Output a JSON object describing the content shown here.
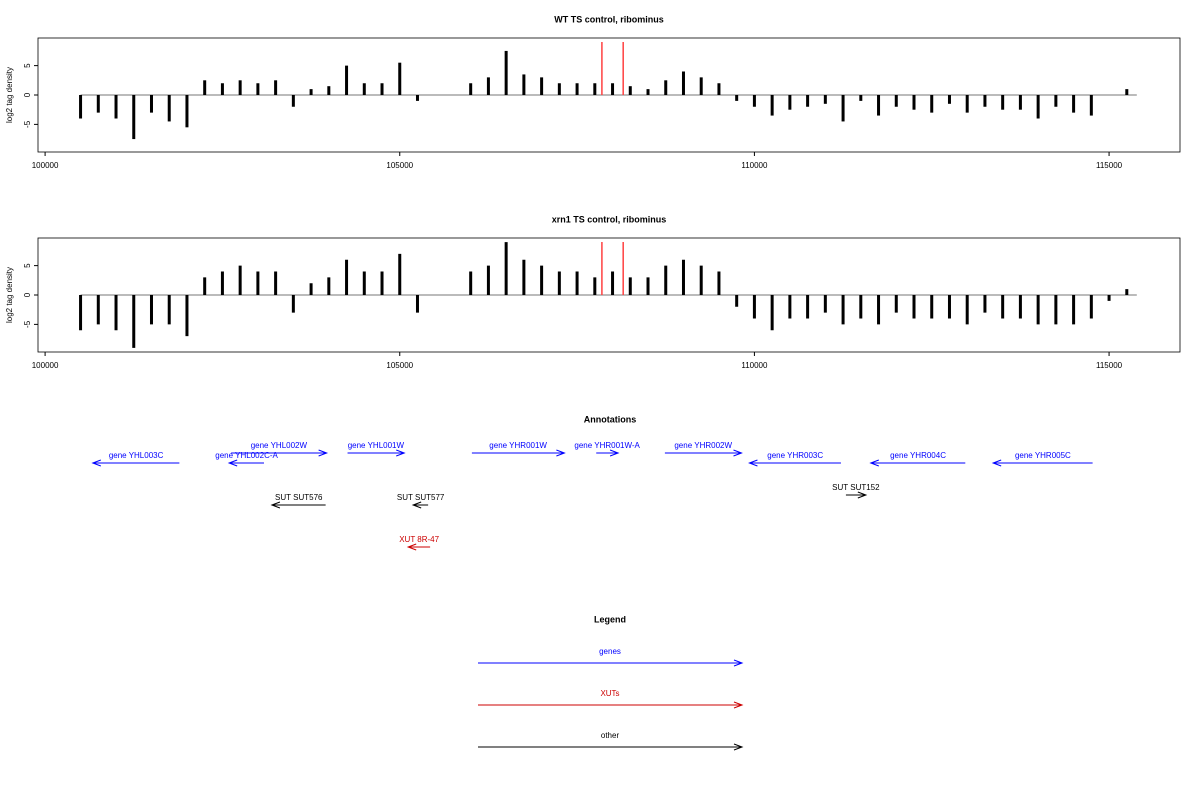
{
  "chart_data": [
    {
      "type": "bar",
      "title": "WT TS control, ribominus",
      "y_label": "log2 tag density",
      "x": [
        100500,
        100750,
        101000,
        101250,
        101500,
        101750,
        102000,
        102250,
        102500,
        102750,
        103000,
        103250,
        103500,
        103750,
        104000,
        104250,
        104500,
        104750,
        105000,
        105250,
        105500,
        105750,
        106000,
        106250,
        106500,
        106750,
        107000,
        107250,
        107500,
        107750,
        108000,
        108250,
        108500,
        108750,
        109000,
        109250,
        109500,
        109750,
        110000,
        110250,
        110500,
        110750,
        111000,
        111250,
        111500,
        111750,
        112000,
        112250,
        112500,
        112750,
        113000,
        113250,
        113500,
        113750,
        114000,
        114250,
        114500,
        114750,
        115000,
        115250
      ],
      "values": [
        -4,
        -3,
        -4,
        -7.5,
        -3,
        -4.5,
        -5.5,
        2.5,
        2,
        2.5,
        2,
        2.5,
        -2,
        1,
        1.5,
        5,
        2,
        2,
        5.5,
        -1,
        0,
        0,
        2,
        3,
        7.5,
        3.5,
        3,
        2,
        2,
        2,
        2,
        1.5,
        1,
        2.5,
        4,
        3,
        2,
        -1,
        -2,
        -3.5,
        -2.5,
        -2,
        -1.5,
        -4.5,
        -1,
        -3.5,
        -2,
        -2.5,
        -3,
        -1.5,
        -3,
        -2,
        -2.5,
        -2.5,
        -4,
        -2,
        -3,
        -3.5,
        0,
        1
      ],
      "color": "#000000",
      "markers": [
        107850,
        108150
      ],
      "marker_color": "#ff4040",
      "xlim": [
        99900,
        116000
      ],
      "xticks": [
        100000,
        105000,
        110000,
        115000
      ],
      "ylim": [
        -9.7,
        9.7
      ],
      "yticks": [
        -5,
        0,
        5
      ]
    },
    {
      "type": "bar",
      "title": "xrn1 TS control, ribominus",
      "y_label": "log2 tag density",
      "x": [
        100500,
        100750,
        101000,
        101250,
        101500,
        101750,
        102000,
        102250,
        102500,
        102750,
        103000,
        103250,
        103500,
        103750,
        104000,
        104250,
        104500,
        104750,
        105000,
        105250,
        105500,
        105750,
        106000,
        106250,
        106500,
        106750,
        107000,
        107250,
        107500,
        107750,
        108000,
        108250,
        108500,
        108750,
        109000,
        109250,
        109500,
        109750,
        110000,
        110250,
        110500,
        110750,
        111000,
        111250,
        111500,
        111750,
        112000,
        112250,
        112500,
        112750,
        113000,
        113250,
        113500,
        113750,
        114000,
        114250,
        114500,
        114750,
        115000,
        115250
      ],
      "values": [
        -6,
        -5,
        -6,
        -9,
        -5,
        -5,
        -7,
        3,
        4,
        5,
        4,
        4,
        -3,
        2,
        3,
        6,
        4,
        4,
        7,
        -3,
        0,
        0,
        4,
        5,
        9,
        6,
        5,
        4,
        4,
        3,
        4,
        3,
        3,
        5,
        6,
        5,
        4,
        -2,
        -4,
        -6,
        -4,
        -4,
        -3,
        -5,
        -4,
        -5,
        -3,
        -4,
        -4,
        -4,
        -5,
        -3,
        -4,
        -4,
        -5,
        -5,
        -5,
        -4,
        -1,
        1
      ],
      "color": "#000000",
      "markers": [
        107850,
        108150
      ],
      "marker_color": "#ff4040",
      "xlim": [
        99900,
        116000
      ],
      "xticks": [
        100000,
        105000,
        110000,
        115000
      ],
      "ylim": [
        -9.7,
        9.7
      ],
      "yticks": [
        -5,
        0,
        5
      ]
    }
  ],
  "annotations": {
    "title": "Annotations",
    "features": [
      {
        "label": "gene YHL003C",
        "start": 100673,
        "end": 101893,
        "strand": "-",
        "color": "#0000ff"
      },
      {
        "label": "gene YHL002W",
        "start": 102623,
        "end": 103969,
        "strand": "+",
        "color": "#0000ff"
      },
      {
        "label": "gene YHL002C-A",
        "start": 102595,
        "end": 103086,
        "strand": "-",
        "color": "#0000ff"
      },
      {
        "label": "gene YHL001W",
        "start": 104264,
        "end": 105063,
        "strand": "+",
        "color": "#0000ff"
      },
      {
        "label": "gene YHR001W",
        "start": 106017,
        "end": 107321,
        "strand": "+",
        "color": "#0000ff"
      },
      {
        "label": "gene YHR001W-A",
        "start": 107770,
        "end": 108078,
        "strand": "+",
        "color": "#0000ff"
      },
      {
        "label": "gene YHR002W",
        "start": 108738,
        "end": 109818,
        "strand": "+",
        "color": "#0000ff"
      },
      {
        "label": "gene YHR003C",
        "start": 109930,
        "end": 111220,
        "strand": "-",
        "color": "#0000ff"
      },
      {
        "label": "gene YHR004C",
        "start": 111641,
        "end": 112973,
        "strand": "-",
        "color": "#0000ff"
      },
      {
        "label": "gene YHR005C",
        "start": 113366,
        "end": 114768,
        "strand": "-",
        "color": "#0000ff"
      },
      {
        "label": "SUT SUT576",
        "start": 103198,
        "end": 103955,
        "strand": "-",
        "color": "#000000"
      },
      {
        "label": "SUT SUT577",
        "start": 105189,
        "end": 105400,
        "strand": "-",
        "color": "#000000"
      },
      {
        "label": "SUT SUT152",
        "start": 111290,
        "end": 111571,
        "strand": "+",
        "color": "#000000"
      },
      {
        "label": "XUT 8R-47",
        "start": 105119,
        "end": 105428,
        "strand": "-",
        "color": "#cc0000"
      }
    ]
  },
  "legend": {
    "title": "Legend",
    "items": [
      {
        "label": "genes",
        "color": "#0000ff"
      },
      {
        "label": "XUTs",
        "color": "#cc0000"
      },
      {
        "label": "other",
        "color": "#000000"
      }
    ]
  }
}
